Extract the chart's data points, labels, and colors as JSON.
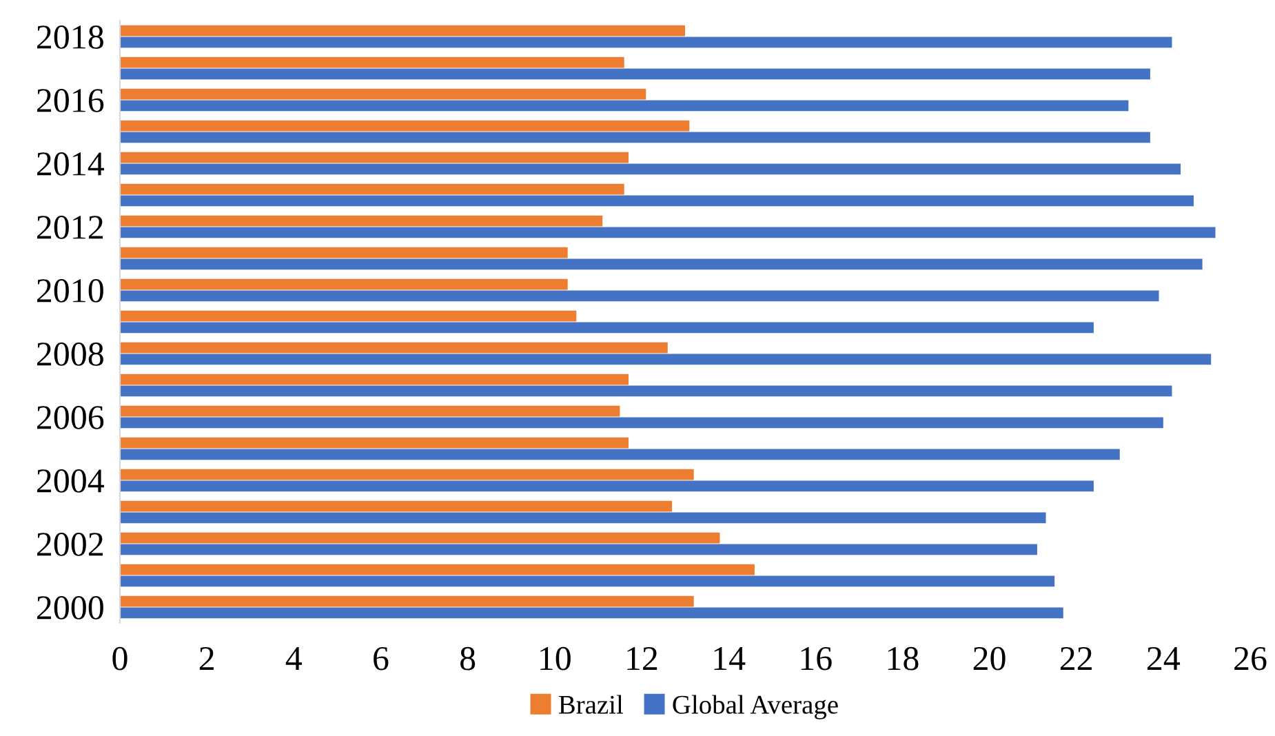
{
  "chart_data": {
    "type": "bar",
    "orientation": "horizontal",
    "categories": [
      "2018",
      null,
      "2016",
      null,
      "2014",
      null,
      "2012",
      null,
      "2010",
      null,
      "2008",
      null,
      "2006",
      null,
      "2004",
      null,
      "2002",
      null,
      "2000"
    ],
    "series": [
      {
        "name": "Brazil",
        "color": "#ed7d31",
        "values": [
          13.0,
          11.6,
          12.1,
          13.1,
          11.7,
          11.6,
          11.1,
          10.3,
          10.3,
          10.5,
          12.6,
          11.7,
          11.5,
          11.7,
          13.2,
          12.7,
          13.8,
          14.6,
          13.2
        ]
      },
      {
        "name": "Global Average",
        "color": "#4472c4",
        "values": [
          24.2,
          23.7,
          23.2,
          23.7,
          24.4,
          24.7,
          25.2,
          24.9,
          23.9,
          22.4,
          25.1,
          24.2,
          24.0,
          23.0,
          22.4,
          21.3,
          21.1,
          21.5,
          21.7
        ]
      }
    ],
    "xlim": [
      0,
      26
    ],
    "xticks": [
      0,
      2,
      4,
      6,
      8,
      10,
      12,
      14,
      16,
      18,
      20,
      22,
      24,
      26
    ],
    "grid": false,
    "legend": "bottom"
  }
}
